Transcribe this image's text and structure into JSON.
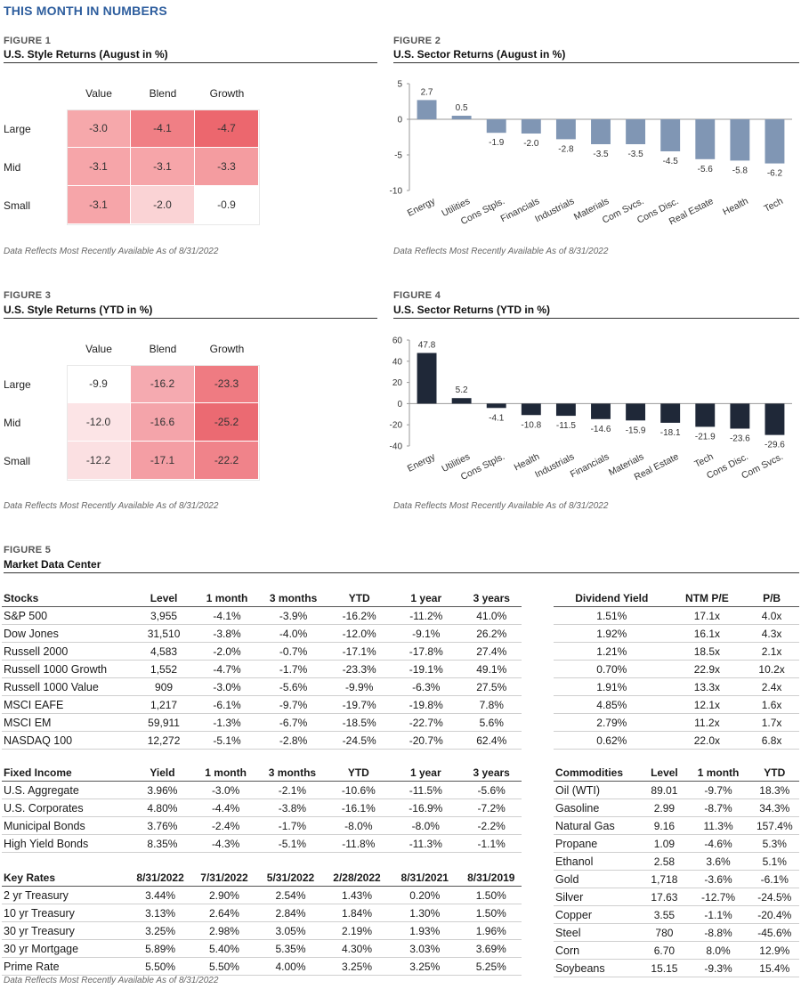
{
  "page_title": "THIS MONTH IN NUMBERS",
  "source_note": "Data Reflects Most Recently Available As of 8/31/2022",
  "chart_data": [
    {
      "type": "heatmap",
      "label": "FIGURE 1",
      "title": "U.S. Style Returns (August in %)",
      "columns": [
        "Value",
        "Blend",
        "Growth"
      ],
      "rows": [
        "Large",
        "Mid",
        "Small"
      ],
      "values": [
        [
          -3.0,
          -4.1,
          -4.7
        ],
        [
          -3.1,
          -3.1,
          -3.3
        ],
        [
          -3.1,
          -2.0,
          -0.9
        ]
      ],
      "cell_colors": [
        [
          "#f6a8ab",
          "#f07f85",
          "#ec676e"
        ],
        [
          "#f6a5a9",
          "#f6a5a9",
          "#f49ca0"
        ],
        [
          "#f6a5a9",
          "#fad3d5",
          "#ffffff"
        ]
      ]
    },
    {
      "type": "bar",
      "label": "FIGURE 2",
      "title": "U.S. Sector Returns (August in %)",
      "categories": [
        "Energy",
        "Utilities",
        "Cons Stpls.",
        "Financials",
        "Industrials",
        "Materials",
        "Com Svcs.",
        "Cons Disc.",
        "Real Estate",
        "Health",
        "Tech"
      ],
      "values": [
        2.7,
        0.5,
        -1.9,
        -2.0,
        -2.8,
        -3.5,
        -3.5,
        -4.5,
        -5.6,
        -5.8,
        -6.2
      ],
      "ylim": [
        -10,
        5
      ],
      "yticks": [
        5,
        0,
        -5,
        -10
      ],
      "color": "#8096b4"
    },
    {
      "type": "heatmap",
      "label": "FIGURE 3",
      "title": "U.S. Style Returns (YTD in %)",
      "columns": [
        "Value",
        "Blend",
        "Growth"
      ],
      "rows": [
        "Large",
        "Mid",
        "Small"
      ],
      "values": [
        [
          -9.9,
          -16.2,
          -23.3
        ],
        [
          -12.0,
          -16.6,
          -25.2
        ],
        [
          -12.2,
          -17.1,
          -22.2
        ]
      ],
      "cell_colors": [
        [
          "#ffffff",
          "#f5aab0",
          "#ef7b82"
        ],
        [
          "#fce4e6",
          "#f4a4aa",
          "#eb6a72"
        ],
        [
          "#fbe0e2",
          "#f49ea4",
          "#f0838a"
        ]
      ]
    },
    {
      "type": "bar",
      "label": "FIGURE 4",
      "title": "U.S. Sector Returns (YTD in %)",
      "categories": [
        "Energy",
        "Utilities",
        "Cons Stpls.",
        "Health",
        "Industrials",
        "Financials",
        "Materials",
        "Real Estate",
        "Tech",
        "Cons Disc.",
        "Com Svcs."
      ],
      "values": [
        47.8,
        5.2,
        -4.1,
        -10.8,
        -11.5,
        -14.6,
        -15.9,
        -18.1,
        -21.9,
        -23.6,
        -29.6
      ],
      "ylim": [
        -40,
        60
      ],
      "yticks": [
        60,
        40,
        20,
        0,
        -20,
        -40
      ],
      "color": "#1f2838"
    }
  ],
  "figure5": {
    "label": "FIGURE 5",
    "title": "Market Data Center",
    "stocks": {
      "headers": [
        "Stocks",
        "Level",
        "1 month",
        "3 months",
        "YTD",
        "1 year",
        "3 years"
      ],
      "rows": [
        [
          "S&P 500",
          "3,955",
          "-4.1%",
          "-3.9%",
          "-16.2%",
          "-11.2%",
          "41.0%"
        ],
        [
          "Dow Jones",
          "31,510",
          "-3.8%",
          "-4.0%",
          "-12.0%",
          "-9.1%",
          "26.2%"
        ],
        [
          "Russell 2000",
          "4,583",
          "-2.0%",
          "-0.7%",
          "-17.1%",
          "-17.8%",
          "27.4%"
        ],
        [
          "Russell 1000 Growth",
          "1,552",
          "-4.7%",
          "-1.7%",
          "-23.3%",
          "-19.1%",
          "49.1%"
        ],
        [
          "Russell 1000 Value",
          "909",
          "-3.0%",
          "-5.6%",
          "-9.9%",
          "-6.3%",
          "27.5%"
        ],
        [
          "MSCI EAFE",
          "1,217",
          "-6.1%",
          "-9.7%",
          "-19.7%",
          "-19.8%",
          "7.8%"
        ],
        [
          "MSCI EM",
          "59,911",
          "-1.3%",
          "-6.7%",
          "-18.5%",
          "-22.7%",
          "5.6%"
        ],
        [
          "NASDAQ 100",
          "12,272",
          "-5.1%",
          "-2.8%",
          "-24.5%",
          "-20.7%",
          "62.4%"
        ]
      ]
    },
    "dividends": {
      "headers": [
        "Dividend Yield",
        "NTM P/E",
        "P/B"
      ],
      "rows": [
        [
          "1.51%",
          "17.1x",
          "4.0x"
        ],
        [
          "1.92%",
          "16.1x",
          "4.3x"
        ],
        [
          "1.21%",
          "18.5x",
          "2.1x"
        ],
        [
          "0.70%",
          "22.9x",
          "10.2x"
        ],
        [
          "1.91%",
          "13.3x",
          "2.4x"
        ],
        [
          "4.85%",
          "12.1x",
          "1.6x"
        ],
        [
          "2.79%",
          "11.2x",
          "1.7x"
        ],
        [
          "0.62%",
          "22.0x",
          "6.8x"
        ]
      ]
    },
    "fixed_income": {
      "headers": [
        "Fixed Income",
        "Yield",
        "1 month",
        "3 months",
        "YTD",
        "1 year",
        "3 years"
      ],
      "rows": [
        [
          "U.S. Aggregate",
          "3.96%",
          "-3.0%",
          "-2.1%",
          "-10.6%",
          "-11.5%",
          "-5.6%"
        ],
        [
          "U.S. Corporates",
          "4.80%",
          "-4.4%",
          "-3.8%",
          "-16.1%",
          "-16.9%",
          "-7.2%"
        ],
        [
          "Municipal Bonds",
          "3.76%",
          "-2.4%",
          "-1.7%",
          "-8.0%",
          "-8.0%",
          "-2.2%"
        ],
        [
          "High Yield Bonds",
          "8.35%",
          "-4.3%",
          "-5.1%",
          "-11.8%",
          "-11.3%",
          "-1.1%"
        ]
      ]
    },
    "key_rates": {
      "headers": [
        "Key Rates",
        "8/31/2022",
        "7/31/2022",
        "5/31/2022",
        "2/28/2022",
        "8/31/2021",
        "8/31/2019"
      ],
      "rows": [
        [
          "2 yr Treasury",
          "3.44%",
          "2.90%",
          "2.54%",
          "1.43%",
          "0.20%",
          "1.50%"
        ],
        [
          "10 yr Treasury",
          "3.13%",
          "2.64%",
          "2.84%",
          "1.84%",
          "1.30%",
          "1.50%"
        ],
        [
          "30 yr Treasury",
          "3.25%",
          "2.98%",
          "3.05%",
          "2.19%",
          "1.93%",
          "1.96%"
        ],
        [
          "30 yr Mortgage",
          "5.89%",
          "5.40%",
          "5.35%",
          "4.30%",
          "3.03%",
          "3.69%"
        ],
        [
          "Prime Rate",
          "5.50%",
          "5.50%",
          "4.00%",
          "3.25%",
          "3.25%",
          "5.25%"
        ]
      ]
    },
    "commodities": {
      "headers": [
        "Commodities",
        "Level",
        "1 month",
        "YTD"
      ],
      "rows": [
        [
          "Oil (WTI)",
          "89.01",
          "-9.7%",
          "18.3%"
        ],
        [
          "Gasoline",
          "2.99",
          "-8.7%",
          "34.3%"
        ],
        [
          "Natural Gas",
          "9.16",
          "11.3%",
          "157.4%"
        ],
        [
          "Propane",
          "1.09",
          "-4.6%",
          "5.3%"
        ],
        [
          "Ethanol",
          "2.58",
          "3.6%",
          "5.1%"
        ],
        [
          "Gold",
          "1,718",
          "-3.6%",
          "-6.1%"
        ],
        [
          "Silver",
          "17.63",
          "-12.7%",
          "-24.5%"
        ],
        [
          "Copper",
          "3.55",
          "-1.1%",
          "-20.4%"
        ],
        [
          "Steel",
          "780",
          "-8.8%",
          "-45.6%"
        ],
        [
          "Corn",
          "6.70",
          "8.0%",
          "12.9%"
        ],
        [
          "Soybeans",
          "15.15",
          "-9.3%",
          "15.4%"
        ]
      ]
    }
  }
}
